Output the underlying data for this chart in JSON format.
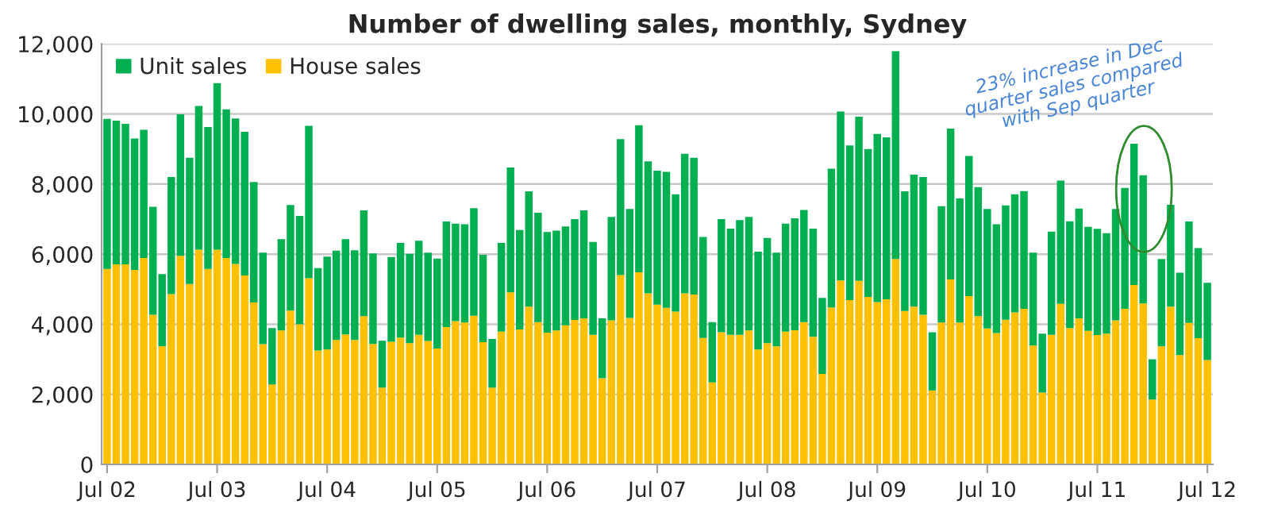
{
  "chart_data": {
    "type": "bar",
    "stacked": true,
    "title": "Number of dwelling sales, monthly, Sydney",
    "categories": [
      "Jul 02",
      null,
      null,
      null,
      null,
      null,
      null,
      null,
      null,
      null,
      null,
      null,
      "Jul 03",
      null,
      null,
      null,
      null,
      null,
      null,
      null,
      null,
      null,
      null,
      null,
      "Jul 04",
      null,
      null,
      null,
      null,
      null,
      null,
      null,
      null,
      null,
      null,
      null,
      "Jul 05",
      null,
      null,
      null,
      null,
      null,
      null,
      null,
      null,
      null,
      null,
      null,
      "Jul 06",
      null,
      null,
      null,
      null,
      null,
      null,
      null,
      null,
      null,
      null,
      null,
      "Jul 07",
      null,
      null,
      null,
      null,
      null,
      null,
      null,
      null,
      null,
      null,
      null,
      "Jul 08",
      null,
      null,
      null,
      null,
      null,
      null,
      null,
      null,
      null,
      null,
      null,
      "Jul 09",
      null,
      null,
      null,
      null,
      null,
      null,
      null,
      null,
      null,
      null,
      null,
      "Jul 10",
      null,
      null,
      null,
      null,
      null,
      null,
      null,
      null,
      null,
      null,
      null,
      "Jul 11",
      null,
      null,
      null,
      null,
      null,
      null,
      null,
      null,
      null,
      null,
      null,
      "Jul 12"
    ],
    "series": [
      {
        "name": "House sales",
        "color": "#ffc000",
        "values": [
          5580,
          5710,
          5710,
          5550,
          5890,
          4270,
          3370,
          4860,
          5950,
          5150,
          6130,
          5580,
          6130,
          5890,
          5720,
          5390,
          4620,
          3430,
          2280,
          3820,
          4390,
          4000,
          5310,
          3250,
          3280,
          3550,
          3710,
          3550,
          4230,
          3440,
          2190,
          3500,
          3620,
          3460,
          3700,
          3520,
          3310,
          3920,
          4090,
          4050,
          4240,
          3490,
          2190,
          3790,
          4910,
          3850,
          4500,
          4060,
          3760,
          3820,
          3970,
          4120,
          4170,
          3700,
          2460,
          4110,
          5400,
          4180,
          5480,
          4880,
          4560,
          4470,
          4360,
          4880,
          4850,
          3610,
          2340,
          3770,
          3700,
          3700,
          3820,
          3280,
          3460,
          3370,
          3790,
          3830,
          4060,
          3640,
          2580,
          4480,
          5250,
          4690,
          5240,
          4780,
          4630,
          4710,
          5860,
          4380,
          4500,
          4270,
          2110,
          4050,
          5280,
          4050,
          4800,
          4230,
          3880,
          3750,
          4130,
          4340,
          4440,
          3390,
          2050,
          3700,
          4580,
          3890,
          4170,
          3810,
          3690,
          3730,
          4110,
          4440,
          5120,
          4590,
          1850,
          3370,
          4500,
          3120,
          4040,
          3600,
          2980
        ]
      },
      {
        "name": "Unit sales",
        "color": "#00b050",
        "values": [
          4280,
          4100,
          4010,
          3750,
          3660,
          3080,
          2060,
          3340,
          4040,
          3600,
          4100,
          4050,
          4750,
          4240,
          4150,
          4100,
          3440,
          2610,
          1610,
          2610,
          3010,
          3090,
          4350,
          2350,
          2650,
          2550,
          2720,
          2560,
          3020,
          2580,
          1340,
          2420,
          2700,
          2550,
          2680,
          2520,
          2560,
          3010,
          2780,
          2800,
          3070,
          2490,
          1390,
          2530,
          3560,
          2840,
          3290,
          3120,
          2870,
          2850,
          2820,
          2880,
          3080,
          2650,
          1710,
          2950,
          3880,
          3110,
          4200,
          3770,
          3820,
          3880,
          3350,
          3980,
          3900,
          2880,
          1720,
          3230,
          3030,
          3270,
          3240,
          2790,
          3000,
          2670,
          3080,
          3190,
          3200,
          3090,
          2170,
          3960,
          4820,
          4410,
          4680,
          4220,
          4800,
          4620,
          5930,
          3410,
          3770,
          3930,
          1660,
          3320,
          4300,
          3540,
          4000,
          3680,
          3410,
          3100,
          3260,
          3370,
          3360,
          2650,
          1680,
          2940,
          3520,
          3050,
          3130,
          2970,
          3030,
          2870,
          3180,
          3450,
          4030,
          3660,
          1150,
          2490,
          2910,
          2350,
          2890,
          2570,
          2200
        ]
      }
    ],
    "ylim": [
      0,
      12000
    ],
    "yticks": [
      {
        "value": 0,
        "label": "0"
      },
      {
        "value": 2000,
        "label": "2,000"
      },
      {
        "value": 4000,
        "label": "4,000"
      },
      {
        "value": 6000,
        "label": "6,000"
      },
      {
        "value": 8000,
        "label": "8,000"
      },
      {
        "value": 10000,
        "label": "10,000"
      },
      {
        "value": 12000,
        "label": "12,000"
      }
    ],
    "grid": "y",
    "legend": "top left",
    "annotations": [
      "23% increase in Dec\nquarter sales compared\nwith Sep quarter"
    ]
  }
}
